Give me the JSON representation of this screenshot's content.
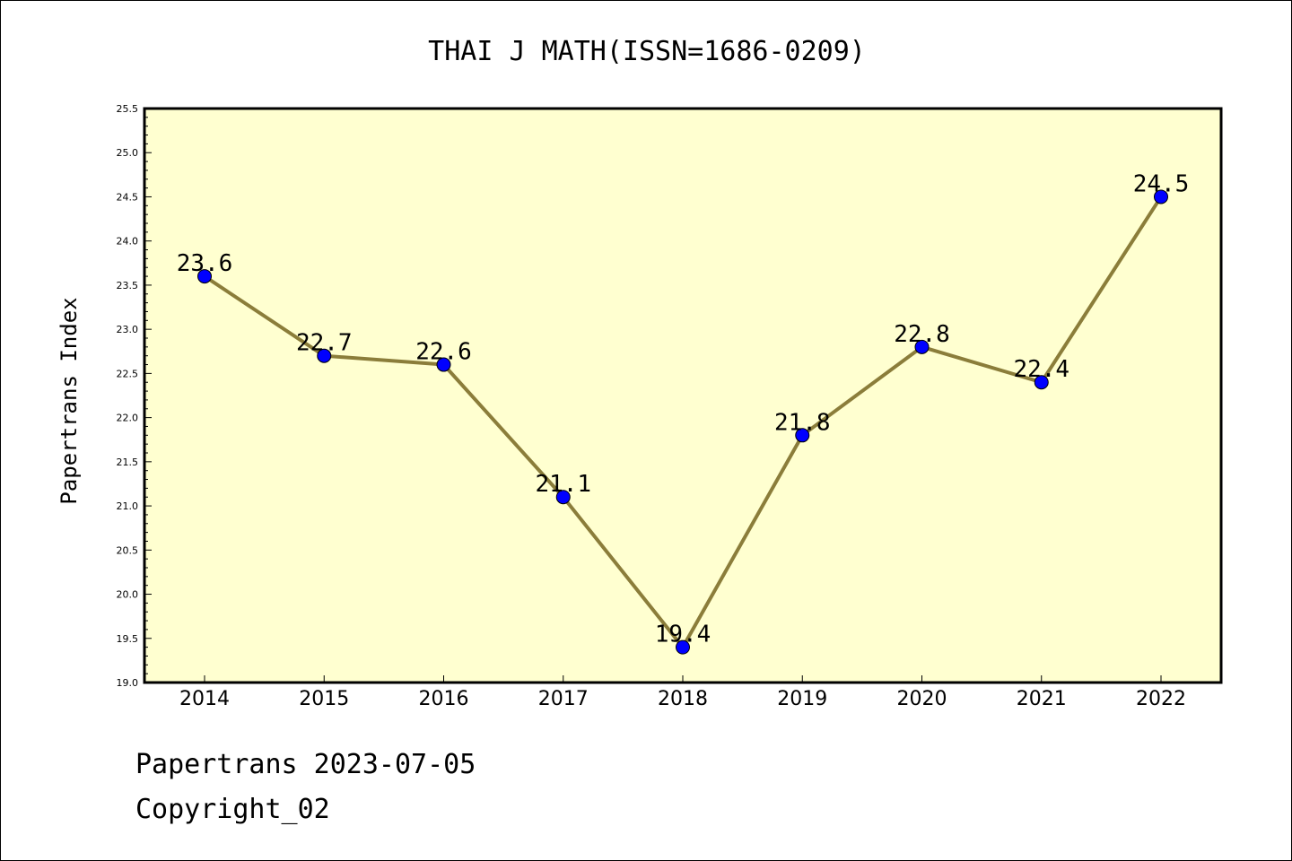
{
  "chart_data": {
    "type": "line",
    "title": "THAI J MATH(ISSN=1686-0209)",
    "xlabel": "",
    "ylabel": "Papertrans Index",
    "categories": [
      "2014",
      "2015",
      "2016",
      "2017",
      "2018",
      "2019",
      "2020",
      "2021",
      "2022"
    ],
    "values": [
      23.6,
      22.7,
      22.6,
      21.1,
      19.4,
      21.8,
      22.8,
      22.4,
      24.5
    ],
    "data_labels": [
      "23.6",
      "22.7",
      "22.6",
      "21.1",
      "19.4",
      "21.8",
      "22.8",
      "22.4",
      "24.5"
    ],
    "ylim": [
      19.0,
      25.5
    ],
    "yticks": [
      "19.0",
      "19.5",
      "20.0",
      "20.5",
      "21.0",
      "21.5",
      "22.0",
      "22.5",
      "23.0",
      "23.5",
      "24.0",
      "24.5",
      "25.0",
      "25.5"
    ],
    "grid": false,
    "legend": "none",
    "colors": {
      "plot_background": "#ffffd0",
      "line": "#8b7d3a",
      "marker": "#0000ff",
      "axes": "#000000"
    }
  },
  "footer": {
    "date_line": "Papertrans 2023-07-05",
    "copyright_line": "Copyright_02"
  }
}
